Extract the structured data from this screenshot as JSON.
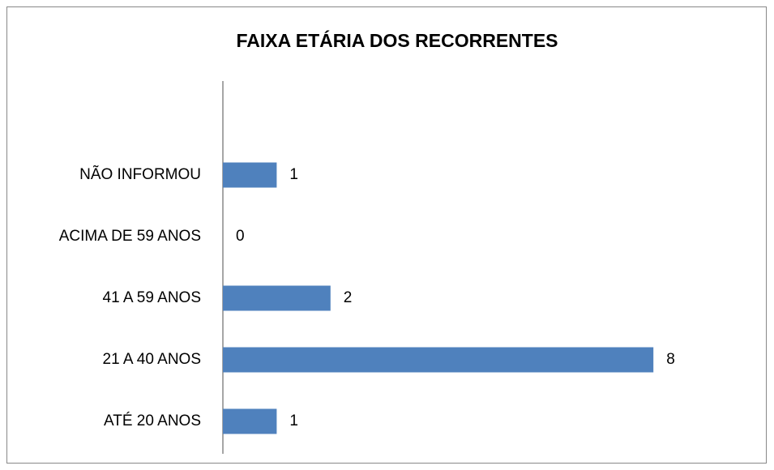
{
  "chart_data": {
    "type": "hbar",
    "title": "FAIXA ETÁRIA DOS RECORRENTES",
    "categories": [
      "ATÉ 20 ANOS",
      "21 A 40 ANOS",
      "41 A 59 ANOS",
      "ACIMA DE 59 ANOS",
      "NÃO INFORMOU"
    ],
    "values": [
      1,
      8,
      2,
      0,
      1
    ],
    "color": "#4f81bd",
    "xlim": [
      0,
      10
    ]
  }
}
